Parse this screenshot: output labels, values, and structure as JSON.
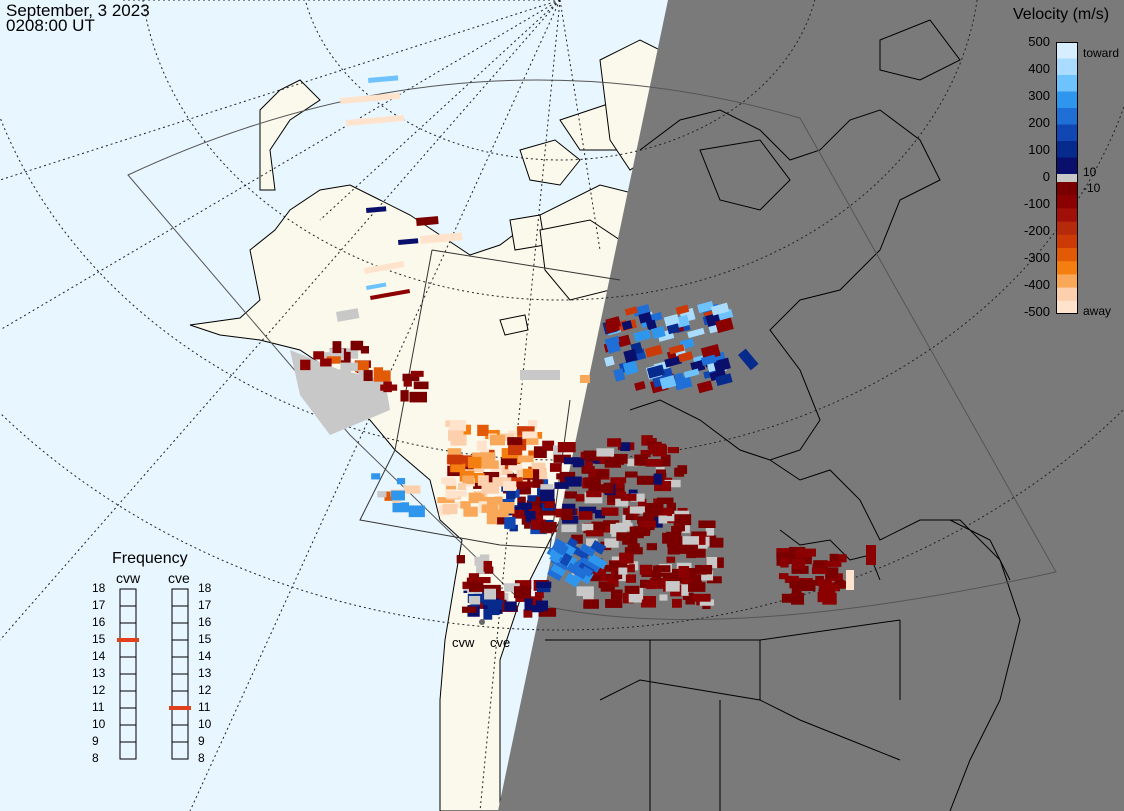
{
  "header": {
    "date": "September, 3 2023",
    "time": "0208:00 UT"
  },
  "velocity_legend": {
    "title": "Velocity (m/s)",
    "ticks": [
      "500",
      "400",
      "300",
      "200",
      "100",
      "0",
      "-100",
      "-200",
      "-300",
      "-400",
      "-500"
    ],
    "small_ticks": [
      "10",
      "-10"
    ],
    "toward_label": "toward",
    "away_label": "away",
    "colors_toward": [
      "#d6eeff",
      "#a9dcff",
      "#6ec3ff",
      "#2f96ee",
      "#1f6fd6",
      "#1047b2",
      "#062b8c",
      "#0a0f6b"
    ],
    "colors_away": [
      "#7a0000",
      "#8b0000",
      "#a01008",
      "#b52a0a",
      "#cc3a08",
      "#e35a06",
      "#f47f10",
      "#f9a85a",
      "#fcd0ad",
      "#ffe3cc"
    ],
    "zero_color": "#c8c8c8"
  },
  "frequency_panel": {
    "title": "Frequency",
    "radars": [
      "cvw",
      "cve"
    ],
    "scale": [
      "18",
      "17",
      "16",
      "15",
      "14",
      "13",
      "12",
      "11",
      "10",
      "9",
      "8"
    ],
    "cvw_mhz": 15,
    "cve_mhz": 11,
    "marker_color": "#e0401c"
  },
  "radar_sites": [
    "cvw",
    "cve"
  ],
  "colors": {
    "ocean": "#e8f6ff",
    "land_day": "#fbf9ec",
    "night": "#7a7a7a",
    "grey_scatter": "#c8c8c8"
  }
}
